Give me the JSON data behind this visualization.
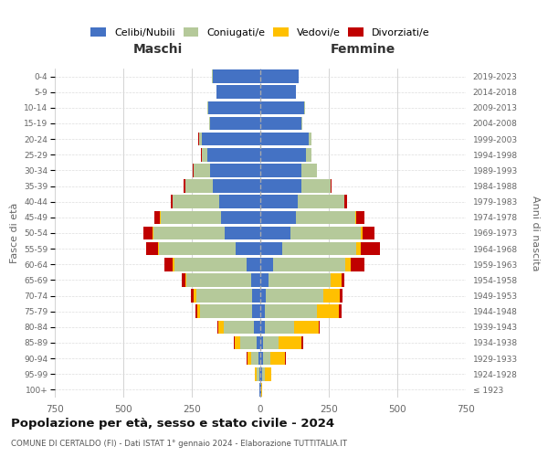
{
  "age_groups": [
    "100+",
    "95-99",
    "90-94",
    "85-89",
    "80-84",
    "75-79",
    "70-74",
    "65-69",
    "60-64",
    "55-59",
    "50-54",
    "45-49",
    "40-44",
    "35-39",
    "30-34",
    "25-29",
    "20-24",
    "15-19",
    "10-14",
    "5-9",
    "0-4"
  ],
  "birth_years": [
    "≤ 1923",
    "1924-1928",
    "1929-1933",
    "1934-1938",
    "1939-1943",
    "1944-1948",
    "1949-1953",
    "1954-1958",
    "1959-1963",
    "1964-1968",
    "1969-1973",
    "1974-1978",
    "1979-1983",
    "1984-1988",
    "1989-1993",
    "1994-1998",
    "1999-2003",
    "2004-2008",
    "2009-2013",
    "2014-2018",
    "2019-2023"
  ],
  "maschi": {
    "celibi": [
      2,
      5,
      8,
      15,
      25,
      30,
      30,
      35,
      50,
      90,
      130,
      145,
      150,
      175,
      185,
      195,
      215,
      185,
      190,
      160,
      175
    ],
    "coniugati": [
      2,
      10,
      25,
      60,
      110,
      190,
      205,
      235,
      265,
      280,
      260,
      220,
      170,
      100,
      60,
      20,
      10,
      2,
      2,
      1,
      1
    ],
    "vedovi": [
      0,
      5,
      15,
      20,
      18,
      10,
      8,
      5,
      4,
      3,
      2,
      1,
      1,
      0,
      0,
      0,
      0,
      0,
      0,
      0,
      0
    ],
    "divorziati": [
      0,
      0,
      2,
      3,
      4,
      8,
      12,
      12,
      30,
      45,
      35,
      20,
      5,
      5,
      3,
      2,
      1,
      0,
      0,
      0,
      0
    ]
  },
  "femmine": {
    "nubili": [
      2,
      5,
      10,
      10,
      18,
      18,
      20,
      30,
      45,
      80,
      110,
      130,
      135,
      150,
      150,
      165,
      175,
      150,
      160,
      130,
      140
    ],
    "coniugate": [
      2,
      10,
      25,
      55,
      105,
      190,
      210,
      225,
      265,
      270,
      255,
      215,
      170,
      105,
      55,
      20,
      10,
      2,
      2,
      1,
      1
    ],
    "vedove": [
      2,
      25,
      55,
      85,
      90,
      80,
      60,
      40,
      20,
      15,
      8,
      4,
      2,
      0,
      0,
      0,
      0,
      0,
      0,
      0,
      0
    ],
    "divorziate": [
      0,
      0,
      2,
      5,
      5,
      8,
      10,
      10,
      50,
      70,
      45,
      30,
      10,
      5,
      2,
      1,
      0,
      0,
      0,
      0,
      0
    ]
  },
  "colors": {
    "celibi_nubili": "#4472c4",
    "coniugati": "#b5c99a",
    "vedovi": "#ffc000",
    "divorziati": "#c00000"
  },
  "xlim": 750,
  "title": "Popolazione per età, sesso e stato civile - 2024",
  "subtitle": "COMUNE DI CERTALDO (FI) - Dati ISTAT 1° gennaio 2024 - Elaborazione TUTTITALIA.IT",
  "ylabel_left": "Fasce di età",
  "ylabel_right": "Anni di nascita",
  "xlabel_maschi": "Maschi",
  "xlabel_femmine": "Femmine"
}
